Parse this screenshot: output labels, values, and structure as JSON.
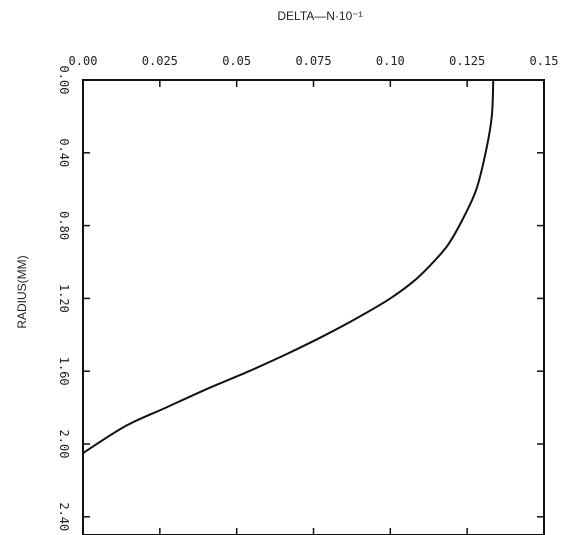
{
  "chart_data": {
    "type": "line",
    "title": "DELTA—N·10⁻¹",
    "xlabel": "DELTA—N·10⁻¹",
    "ylabel": "RADIUS(MM)",
    "x_axis_position": "top",
    "y_axis_inverted": true,
    "xlim": [
      0.0,
      0.15
    ],
    "ylim": [
      0.0,
      2.5
    ],
    "x_tick_labels": [
      "0.00",
      "0.025",
      "0.05",
      "0.075",
      "0.10",
      "0.125",
      "0.15"
    ],
    "x_ticks": [
      0.0,
      0.025,
      0.05,
      0.075,
      0.1,
      0.125,
      0.15
    ],
    "y_tick_labels": [
      "0.00",
      "0.40",
      "0.80",
      "1.20",
      "1.60",
      "2.00",
      "2.40"
    ],
    "y_ticks": [
      0.0,
      0.4,
      0.8,
      1.2,
      1.6,
      2.0,
      2.4
    ],
    "grid": false,
    "series": [
      {
        "x": [
          0.1335,
          0.133,
          0.131,
          0.128,
          0.124,
          0.119,
          0.114,
          0.108,
          0.1,
          0.09,
          0.079,
          0.067,
          0.054,
          0.04,
          0.027,
          0.014,
          0.0
        ],
        "y": [
          0.0,
          0.2,
          0.4,
          0.6,
          0.75,
          0.9,
          1.0,
          1.1,
          1.2,
          1.3,
          1.4,
          1.5,
          1.6,
          1.7,
          1.8,
          1.9,
          2.05
        ]
      }
    ]
  }
}
